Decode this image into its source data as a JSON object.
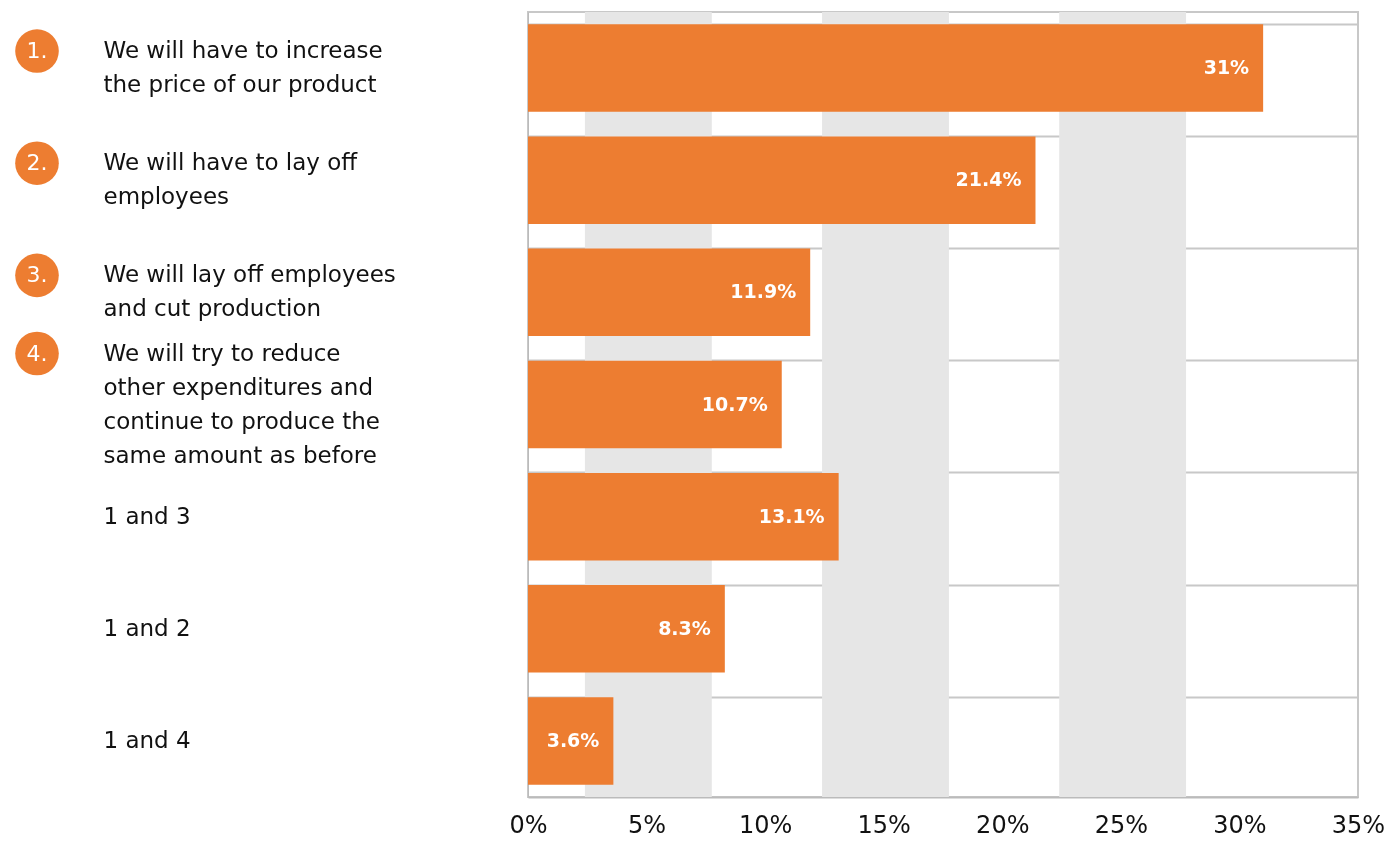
{
  "chart_data": {
    "type": "bar",
    "orientation": "horizontal",
    "categories": [
      "We will have to increase the price of our product",
      "We will have to lay off employees",
      "We will lay off employees and cut production",
      "We will try to reduce other expenditures and continue to produce the same amount as before",
      "1 and 3",
      "1 and 2",
      "1 and 4"
    ],
    "values": [
      31,
      21.4,
      11.9,
      10.7,
      13.1,
      8.3,
      3.6
    ],
    "value_labels": [
      "31%",
      "21.4%",
      "11.9%",
      "10.7%",
      "13.1%",
      "8.3%",
      "3.6%"
    ],
    "color": "#ed7d31",
    "xlim": [
      0,
      35
    ],
    "xticks": [
      {
        "value": 0,
        "label": "0%"
      },
      {
        "value": 5,
        "label": "5%"
      },
      {
        "value": 10,
        "label": "10%"
      },
      {
        "value": 15,
        "label": "15%"
      },
      {
        "value": 20,
        "label": "20%"
      },
      {
        "value": 25,
        "label": "25%"
      },
      {
        "value": 30,
        "label": "30%"
      },
      {
        "value": 35,
        "label": "35%"
      }
    ],
    "grid": "y",
    "bands": [
      {
        "axis": "x",
        "from": 2.4,
        "to": 7.75,
        "color": "#e6e6e6"
      },
      {
        "axis": "x",
        "from": 12.4,
        "to": 17.75,
        "color": "#e6e6e6"
      },
      {
        "axis": "x",
        "from": 22.4,
        "to": 27.75,
        "color": "#e6e6e6"
      }
    ],
    "annotations": [
      "1.",
      "2.",
      "3.",
      "4."
    ]
  }
}
